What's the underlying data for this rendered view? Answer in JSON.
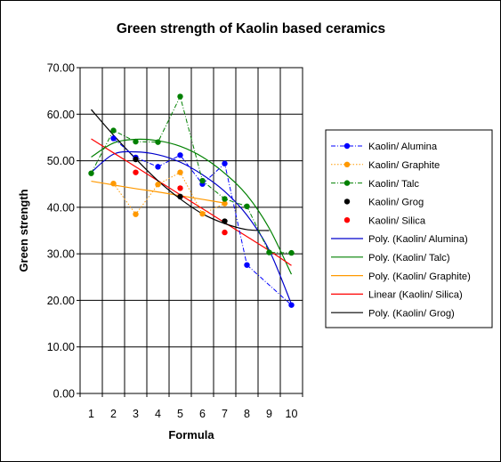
{
  "chart_data": {
    "type": "line",
    "title": "Green strength of Kaolin based ceramics",
    "xlabel": "Formula",
    "ylabel": "Green strength",
    "x": [
      1,
      2,
      3,
      4,
      5,
      6,
      7,
      8,
      9,
      10
    ],
    "x_tick_labels": [
      "1",
      "2",
      "3",
      "4",
      "5",
      "6",
      "7",
      "8",
      "9",
      "10"
    ],
    "ylim": [
      0,
      70
    ],
    "y_tick_labels": [
      "0.00",
      "10.00",
      "20.00",
      "30.00",
      "40.00",
      "50.00",
      "60.00",
      "70.00"
    ],
    "y_ticks": [
      0,
      10,
      20,
      30,
      40,
      50,
      60,
      70
    ],
    "grid": true,
    "legend_position": "right",
    "series": [
      {
        "name": "Kaolin/ Alumina",
        "kind": "points",
        "color": "#0000ff",
        "line_style": "dashdot",
        "values": [
          null,
          54.8,
          50.7,
          48.7,
          51.2,
          45.0,
          49.4,
          27.6,
          null,
          19.0
        ]
      },
      {
        "name": "Kaolin/ Graphite",
        "kind": "points",
        "color": "#ff9900",
        "line_style": "dotted",
        "values": [
          null,
          45.1,
          38.5,
          44.9,
          47.5,
          38.6,
          40.8,
          null,
          null,
          null
        ]
      },
      {
        "name": "Kaolin/ Talc",
        "kind": "points",
        "color": "#008000",
        "line_style": "dashdot",
        "values": [
          47.3,
          56.5,
          54.1,
          54.0,
          63.8,
          45.7,
          41.8,
          40.2,
          30.3,
          30.2
        ]
      },
      {
        "name": "Kaolin/ Grog",
        "kind": "points",
        "color": "#000000",
        "line_style": "none",
        "values": [
          null,
          null,
          50.3,
          null,
          42.3,
          null,
          37.0,
          null,
          null,
          null
        ]
      },
      {
        "name": "Kaolin/ Silica",
        "kind": "points",
        "color": "#ff0000",
        "line_style": "none",
        "values": [
          null,
          null,
          47.5,
          null,
          44.1,
          null,
          34.6,
          null,
          null,
          null
        ]
      },
      {
        "name": "Poly. (Kaolin/ Alumina)",
        "kind": "trend",
        "color": "#0000cc",
        "values": [
          47.5,
          51.4,
          51.9,
          51.3,
          49.7,
          47.0,
          43.4,
          38.3,
          30.8,
          19.2
        ]
      },
      {
        "name": "Poly. (Kaolin/ Talc)",
        "kind": "trend",
        "color": "#008000",
        "values": [
          50.8,
          53.8,
          54.6,
          54.3,
          53.1,
          50.8,
          47.3,
          42.6,
          35.5,
          25.6
        ]
      },
      {
        "name": "Poly. (Kaolin/ Graphite)",
        "kind": "trend",
        "color": "#ff9900",
        "values": [
          45.6,
          44.8,
          44.0,
          43.3,
          42.5,
          41.7,
          40.9,
          null,
          null,
          null
        ]
      },
      {
        "name": "Linear (Kaolin/ Silica)",
        "kind": "trend",
        "color": "#ff0000",
        "values": [
          54.7,
          51.7,
          48.7,
          45.7,
          42.7,
          39.7,
          36.7,
          33.7,
          30.7,
          27.5
        ]
      },
      {
        "name": "Poly. (Kaolin/ Grog)",
        "kind": "trend",
        "color": "#000000",
        "values": [
          61.0,
          55.5,
          50.4,
          45.7,
          41.8,
          38.6,
          36.5,
          35.2,
          35.0,
          null
        ]
      }
    ]
  }
}
